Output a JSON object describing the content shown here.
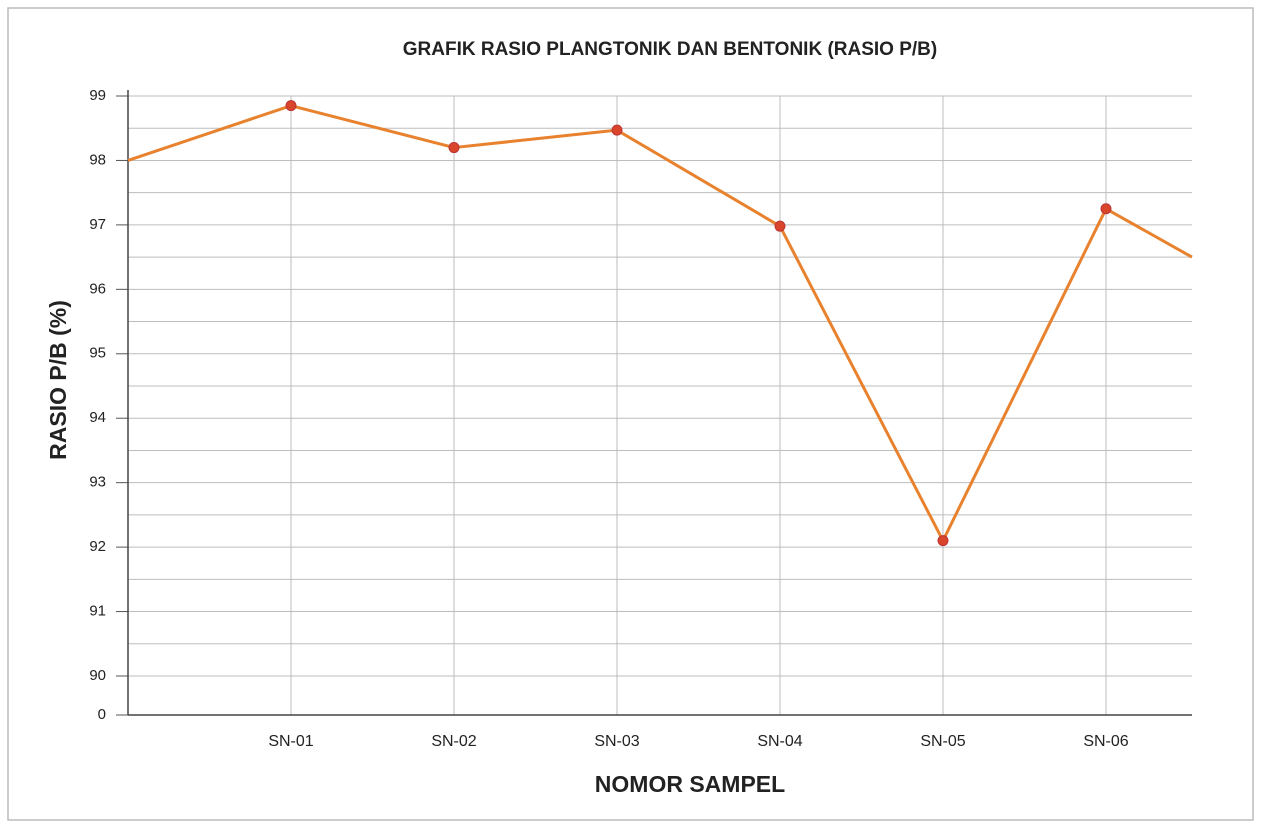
{
  "chart_data": {
    "type": "line",
    "title": "GRAFIK RASIO PLANGTONIK DAN BENTONIK (RASIO P/B)",
    "x_label": "NOMOR SAMPEL",
    "y_label": "RASIO P/B (%)",
    "categories": [
      null,
      "SN-01",
      "SN-02",
      "SN-03",
      "SN-04",
      "SN-05",
      "SN-06",
      null
    ],
    "series": [
      {
        "name": "Rasio P/B",
        "color": "#e8822e",
        "marker_color": "#d9452b",
        "values": [
          98,
          98.85,
          98.2,
          98.47,
          96.98,
          92.1,
          97.25,
          96.5
        ]
      }
    ],
    "ylim": [
      0,
      99
    ],
    "y_break": [
      0,
      90
    ],
    "yticks": [
      0,
      90,
      91,
      92,
      93,
      94,
      95,
      96,
      97,
      98,
      99
    ],
    "grid": true
  }
}
